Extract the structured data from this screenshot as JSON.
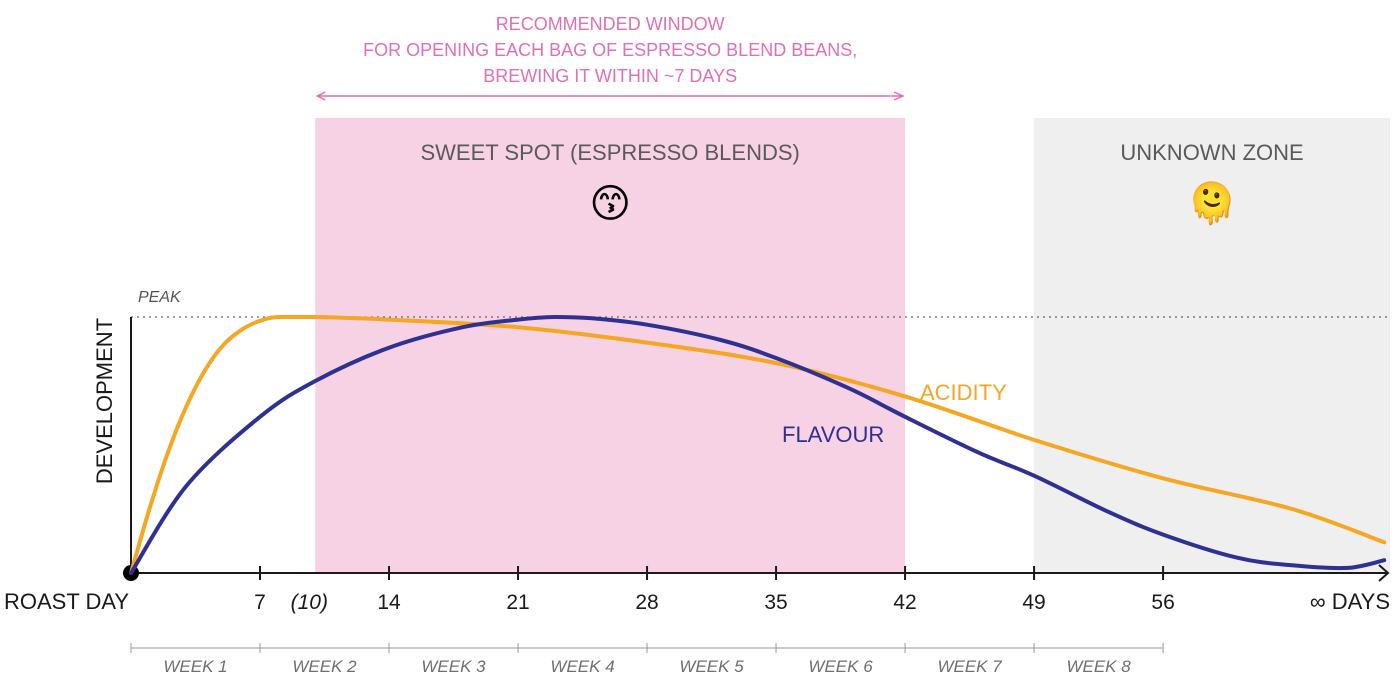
{
  "annotation": {
    "lines": [
      "RECOMMENDED WINDOW",
      "FOR OPENING EACH BAG OF ESPRESSO BLEND BEANS,",
      "BREWING IT WITHIN ~7 DAYS"
    ],
    "color": "#e06fb3"
  },
  "zones": {
    "sweet_spot": {
      "label": "SWEET SPOT (ESPRESSO BLENDS)",
      "emoji": "😙",
      "from": 10,
      "to": 42,
      "color": "#f7d1e4"
    },
    "unknown": {
      "label": "UNKNOWN ZONE",
      "emoji": "🫠",
      "from": 49,
      "color": "#efefef"
    }
  },
  "chart_data": {
    "type": "line",
    "x_unit": "days since roast",
    "y_unit": "development (relative)",
    "ylim": [
      0,
      1
    ],
    "peak_label": "PEAK",
    "ylabel": "DEVELOPMENT",
    "x_start_label": "ROAST DAY",
    "x_end_label": "∞ DAYS",
    "x_ticks": [
      {
        "value": 7,
        "label": "7",
        "italic": false
      },
      {
        "value": 10,
        "label": "(10)",
        "italic": true
      },
      {
        "value": 14,
        "label": "14",
        "italic": false
      },
      {
        "value": 21,
        "label": "21",
        "italic": false
      },
      {
        "value": 28,
        "label": "28",
        "italic": false
      },
      {
        "value": 35,
        "label": "35",
        "italic": false
      },
      {
        "value": 42,
        "label": "42",
        "italic": false
      },
      {
        "value": 49,
        "label": "49",
        "italic": false
      },
      {
        "value": 56,
        "label": "56",
        "italic": false
      }
    ],
    "weeks": [
      "WEEK 1",
      "WEEK 2",
      "WEEK 3",
      "WEEK 4",
      "WEEK 5",
      "WEEK 6",
      "WEEK 7",
      "WEEK 8"
    ],
    "series": [
      {
        "name": "ACIDITY",
        "color": "#f5a623",
        "points": [
          [
            0,
            0
          ],
          [
            1,
            0.25
          ],
          [
            2,
            0.47
          ],
          [
            3,
            0.65
          ],
          [
            4,
            0.79
          ],
          [
            5,
            0.89
          ],
          [
            6,
            0.95
          ],
          [
            7,
            0.985
          ],
          [
            8,
            1.0
          ],
          [
            10,
            1.0
          ],
          [
            14,
            0.99
          ],
          [
            21,
            0.96
          ],
          [
            28,
            0.9
          ],
          [
            35,
            0.82
          ],
          [
            42,
            0.69
          ],
          [
            49,
            0.52
          ],
          [
            56,
            0.37
          ],
          [
            63,
            0.25
          ],
          [
            68,
            0.12
          ]
        ]
      },
      {
        "name": "FLAVOUR",
        "color": "#2e3192",
        "points": [
          [
            0,
            0
          ],
          [
            3,
            0.34
          ],
          [
            7,
            0.61
          ],
          [
            10,
            0.75
          ],
          [
            14,
            0.88
          ],
          [
            18,
            0.96
          ],
          [
            21,
            0.99
          ],
          [
            23,
            1.0
          ],
          [
            25,
            0.995
          ],
          [
            28,
            0.97
          ],
          [
            32,
            0.91
          ],
          [
            35,
            0.84
          ],
          [
            39,
            0.72
          ],
          [
            42,
            0.61
          ],
          [
            46,
            0.47
          ],
          [
            49,
            0.38
          ],
          [
            53,
            0.24
          ],
          [
            56,
            0.15
          ],
          [
            60,
            0.06
          ],
          [
            63,
            0.03
          ],
          [
            66,
            0.02
          ],
          [
            68,
            0.05
          ]
        ]
      }
    ]
  }
}
